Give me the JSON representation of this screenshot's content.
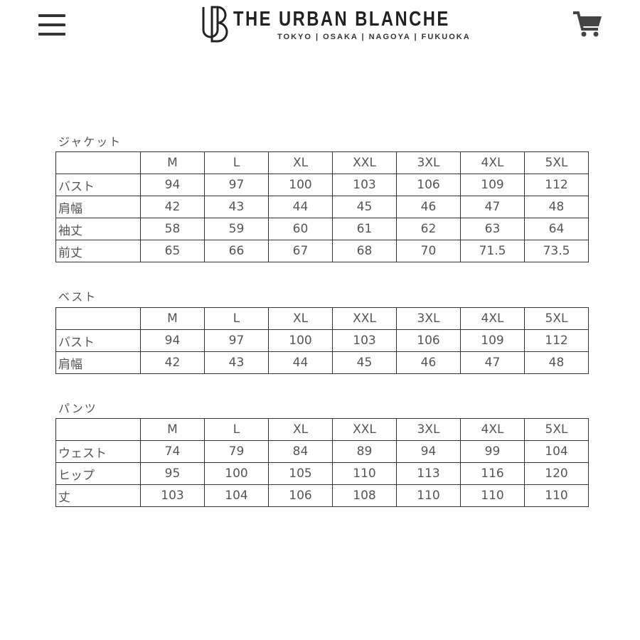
{
  "header": {
    "brand": "THE URBAN BLANCHE",
    "cities": "TOKYO | OSAKA | NAGOYA | FUKUOKA",
    "logo_mark": "UB",
    "menu_icon": "hamburger-icon",
    "cart_icon": "cart-icon"
  },
  "sizes": [
    "M",
    "L",
    "XL",
    "XXL",
    "3XL",
    "4XL",
    "5XL"
  ],
  "jacket": {
    "title": "ジャケット",
    "rows": [
      {
        "label": "バスト",
        "values": [
          "94",
          "97",
          "100",
          "103",
          "106",
          "109",
          "112"
        ]
      },
      {
        "label": "肩幅",
        "values": [
          "42",
          "43",
          "44",
          "45",
          "46",
          "47",
          "48"
        ]
      },
      {
        "label": "袖丈",
        "values": [
          "58",
          "59",
          "60",
          "61",
          "62",
          "63",
          "64"
        ]
      },
      {
        "label": "前丈",
        "values": [
          "65",
          "66",
          "67",
          "68",
          "70",
          "71.5",
          "73.5"
        ]
      }
    ]
  },
  "vest": {
    "title": "ベスト",
    "rows": [
      {
        "label": "バスト",
        "values": [
          "94",
          "97",
          "100",
          "103",
          "106",
          "109",
          "112"
        ]
      },
      {
        "label": "肩幅",
        "values": [
          "42",
          "43",
          "44",
          "45",
          "46",
          "47",
          "48"
        ]
      }
    ]
  },
  "pants": {
    "title": "パンツ",
    "rows": [
      {
        "label": "ウェスト",
        "values": [
          "74",
          "79",
          "84",
          "89",
          "94",
          "99",
          "104"
        ]
      },
      {
        "label": "ヒップ",
        "values": [
          "95",
          "100",
          "105",
          "110",
          "113",
          "116",
          "120"
        ]
      },
      {
        "label": "丈",
        "values": [
          "103",
          "104",
          "106",
          "108",
          "110",
          "110",
          "110"
        ]
      }
    ]
  }
}
